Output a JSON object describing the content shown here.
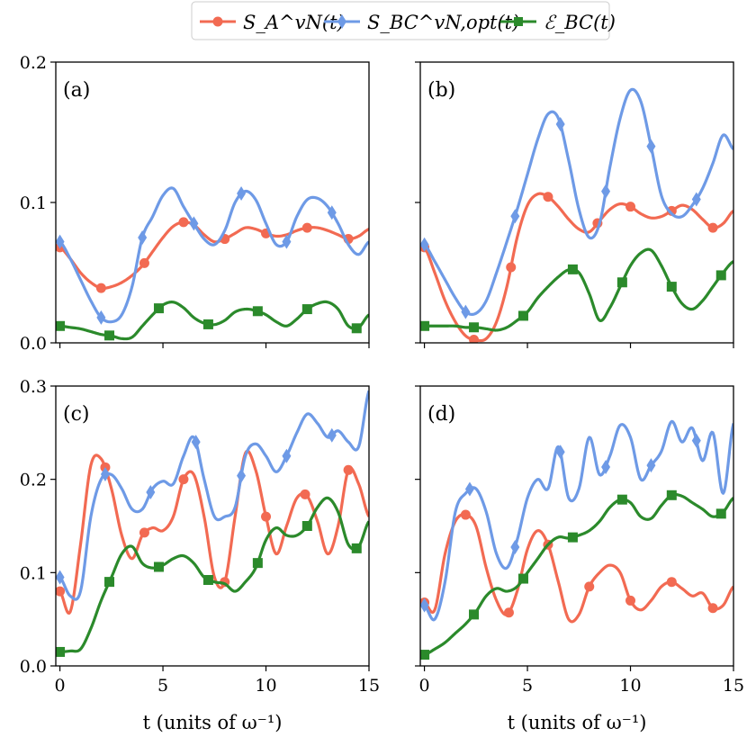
{
  "colors": {
    "S_A": "#f26a52",
    "S_BC": "#6e9ae6",
    "E_BC": "#2b8a2b"
  },
  "legend": {
    "s_a": "S_A^vN(t)",
    "s_bc": "S_BC^vN,opt(t)",
    "e_bc": "ℰ_BC(t)"
  },
  "chart_data": [
    {
      "type": "line",
      "panel": "(a)",
      "xlabel": "",
      "ylabel": "",
      "xlim": [
        -0.2,
        15
      ],
      "ylim": [
        0,
        0.2
      ],
      "xticks": [
        0,
        5,
        10,
        15
      ],
      "yticks": [
        0.0,
        0.1,
        0.2
      ],
      "ytick_labels": [
        "0.0",
        "0.1",
        "0.2"
      ],
      "series": [
        {
          "key": "S_A",
          "name": "S_A^vN(t)",
          "marker": "circle",
          "x": [
            0,
            0.5,
            1,
            1.5,
            2,
            2.5,
            3,
            3.5,
            4,
            4.5,
            5,
            5.5,
            6,
            6.5,
            7,
            7.5,
            8,
            8.5,
            9,
            9.5,
            10,
            10.5,
            11,
            11.5,
            12,
            12.5,
            13,
            13.5,
            14,
            14.5,
            15
          ],
          "y": [
            0.068,
            0.06,
            0.05,
            0.043,
            0.039,
            0.04,
            0.043,
            0.048,
            0.055,
            0.065,
            0.075,
            0.083,
            0.086,
            0.084,
            0.077,
            0.072,
            0.074,
            0.078,
            0.082,
            0.081,
            0.078,
            0.076,
            0.077,
            0.08,
            0.082,
            0.082,
            0.08,
            0.077,
            0.074,
            0.076,
            0.081
          ],
          "markers": [
            0,
            2,
            4.1,
            6,
            8,
            10,
            12,
            14
          ]
        },
        {
          "key": "S_BC",
          "name": "S_BC^vN,opt(t)",
          "marker": "diamond",
          "x": [
            0,
            0.5,
            1,
            1.5,
            2,
            2.5,
            3,
            3.5,
            4,
            4.5,
            5,
            5.5,
            6,
            6.5,
            7,
            7.5,
            8,
            8.5,
            9,
            9.5,
            10,
            10.5,
            11,
            11.5,
            12,
            12.5,
            13,
            13.5,
            14,
            14.5,
            15
          ],
          "y": [
            0.072,
            0.06,
            0.045,
            0.03,
            0.018,
            0.015,
            0.02,
            0.04,
            0.075,
            0.09,
            0.105,
            0.11,
            0.097,
            0.085,
            0.074,
            0.07,
            0.08,
            0.1,
            0.108,
            0.102,
            0.085,
            0.07,
            0.072,
            0.09,
            0.102,
            0.103,
            0.097,
            0.085,
            0.07,
            0.063,
            0.072
          ],
          "markers": [
            0,
            2,
            4,
            6.5,
            8.8,
            11,
            13.2
          ]
        },
        {
          "key": "E_BC",
          "name": "ℰ_BC(t)",
          "marker": "square",
          "x": [
            0,
            0.5,
            1,
            1.5,
            2,
            2.5,
            3,
            3.5,
            4,
            4.5,
            5,
            5.5,
            6,
            6.5,
            7,
            7.5,
            8,
            8.5,
            9,
            9.5,
            10,
            10.5,
            11,
            11.5,
            12,
            12.5,
            13,
            13.5,
            14,
            14.5,
            15
          ],
          "y": [
            0.012,
            0.011,
            0.01,
            0.008,
            0.006,
            0.005,
            0.003,
            0.004,
            0.012,
            0.02,
            0.027,
            0.029,
            0.025,
            0.018,
            0.014,
            0.013,
            0.016,
            0.022,
            0.024,
            0.023,
            0.02,
            0.015,
            0.012,
            0.017,
            0.024,
            0.028,
            0.029,
            0.024,
            0.012,
            0.011,
            0.02
          ],
          "markers": [
            0,
            2.4,
            4.8,
            7.2,
            9.6,
            12,
            14.4
          ]
        }
      ]
    },
    {
      "type": "line",
      "panel": "(b)",
      "xlabel": "",
      "ylabel": "",
      "xlim": [
        -0.2,
        15
      ],
      "ylim": [
        0,
        0.2
      ],
      "xticks": [
        0,
        5,
        10,
        15
      ],
      "yticks": [
        0.0,
        0.1,
        0.2
      ],
      "ytick_labels": [],
      "series": [
        {
          "key": "S_A",
          "name": "S_A^vN(t)",
          "marker": "circle",
          "x": [
            0,
            0.5,
            1,
            1.5,
            2,
            2.5,
            3,
            3.5,
            4,
            4.5,
            5,
            5.5,
            6,
            6.5,
            7,
            7.5,
            8,
            8.5,
            9,
            9.5,
            10,
            10.5,
            11,
            11.5,
            12,
            12.5,
            13,
            13.5,
            14,
            14.5,
            15
          ],
          "y": [
            0.068,
            0.05,
            0.03,
            0.015,
            0.005,
            0.002,
            0.003,
            0.015,
            0.04,
            0.075,
            0.098,
            0.106,
            0.104,
            0.097,
            0.088,
            0.081,
            0.079,
            0.087,
            0.095,
            0.099,
            0.097,
            0.092,
            0.089,
            0.09,
            0.094,
            0.098,
            0.095,
            0.088,
            0.082,
            0.085,
            0.094
          ],
          "markers": [
            0,
            2.4,
            4.2,
            6,
            8.4,
            10,
            12,
            14
          ]
        },
        {
          "key": "S_BC",
          "name": "S_BC^vN,opt(t)",
          "marker": "diamond",
          "x": [
            0,
            0.5,
            1,
            1.5,
            2,
            2.5,
            3,
            3.5,
            4,
            4.5,
            5,
            5.5,
            6,
            6.5,
            7,
            7.5,
            8,
            8.5,
            9,
            9.5,
            10,
            10.5,
            11,
            11.5,
            12,
            12.5,
            13,
            13.5,
            14,
            14.5,
            15
          ],
          "y": [
            0.07,
            0.058,
            0.045,
            0.032,
            0.022,
            0.021,
            0.03,
            0.05,
            0.072,
            0.095,
            0.12,
            0.145,
            0.163,
            0.16,
            0.13,
            0.095,
            0.075,
            0.085,
            0.125,
            0.16,
            0.18,
            0.172,
            0.14,
            0.105,
            0.092,
            0.09,
            0.098,
            0.11,
            0.128,
            0.148,
            0.138
          ],
          "markers": [
            0,
            2,
            4.4,
            6.6,
            8.8,
            11,
            13.2
          ]
        },
        {
          "key": "E_BC",
          "name": "ℰ_BC(t)",
          "marker": "square",
          "x": [
            0,
            0.5,
            1,
            1.5,
            2,
            2.5,
            3,
            3.5,
            4,
            4.5,
            5,
            5.5,
            6,
            6.5,
            7,
            7.5,
            8,
            8.5,
            9,
            9.5,
            10,
            10.5,
            11,
            11.5,
            12,
            12.5,
            13,
            13.5,
            14,
            14.5,
            15
          ],
          "y": [
            0.012,
            0.012,
            0.012,
            0.012,
            0.011,
            0.011,
            0.01,
            0.009,
            0.011,
            0.016,
            0.022,
            0.032,
            0.04,
            0.047,
            0.052,
            0.05,
            0.035,
            0.016,
            0.025,
            0.04,
            0.055,
            0.064,
            0.066,
            0.055,
            0.04,
            0.028,
            0.024,
            0.03,
            0.04,
            0.05,
            0.058
          ],
          "markers": [
            0,
            2.4,
            4.8,
            7.2,
            9.6,
            12,
            14.4
          ]
        }
      ]
    },
    {
      "type": "line",
      "panel": "(c)",
      "xlabel": "t (units of ω⁻¹)",
      "ylabel": "",
      "xlim": [
        -0.2,
        15
      ],
      "ylim": [
        0,
        0.3
      ],
      "xticks": [
        0,
        5,
        10,
        15
      ],
      "yticks": [
        0.0,
        0.1,
        0.2,
        0.3
      ],
      "ytick_labels": [
        "0.0",
        "0.1",
        "0.2",
        "0.3"
      ],
      "series": [
        {
          "key": "S_A",
          "name": "S_A^vN(t)",
          "marker": "circle",
          "x": [
            0,
            0.5,
            1,
            1.5,
            2,
            2.5,
            3,
            3.5,
            4,
            4.5,
            5,
            5.5,
            6,
            6.5,
            7,
            7.5,
            8,
            8.5,
            9,
            9.5,
            10,
            10.5,
            11,
            11.5,
            12,
            12.5,
            13,
            13.5,
            14,
            14.5,
            15
          ],
          "y": [
            0.08,
            0.058,
            0.13,
            0.215,
            0.222,
            0.19,
            0.14,
            0.115,
            0.14,
            0.148,
            0.145,
            0.16,
            0.2,
            0.205,
            0.16,
            0.095,
            0.09,
            0.16,
            0.228,
            0.21,
            0.16,
            0.12,
            0.15,
            0.18,
            0.182,
            0.155,
            0.12,
            0.15,
            0.21,
            0.195,
            0.16
          ],
          "markers": [
            0,
            2.2,
            4.1,
            6,
            8,
            10,
            11.9,
            14
          ]
        },
        {
          "key": "S_BC",
          "name": "S_BC^vN,opt(t)",
          "marker": "diamond",
          "x": [
            0,
            0.5,
            1,
            1.5,
            2,
            2.5,
            3,
            3.5,
            4,
            4.5,
            5,
            5.5,
            6,
            6.5,
            7,
            7.5,
            8,
            8.5,
            9,
            9.5,
            10,
            10.5,
            11,
            11.5,
            12,
            12.5,
            13,
            13.5,
            14,
            14.5,
            15
          ],
          "y": [
            0.095,
            0.075,
            0.08,
            0.16,
            0.2,
            0.205,
            0.19,
            0.168,
            0.168,
            0.19,
            0.198,
            0.195,
            0.225,
            0.245,
            0.2,
            0.16,
            0.16,
            0.17,
            0.225,
            0.238,
            0.225,
            0.208,
            0.225,
            0.25,
            0.27,
            0.26,
            0.245,
            0.252,
            0.24,
            0.235,
            0.295
          ],
          "markers": [
            0,
            2.2,
            4.4,
            6.6,
            8.8,
            11,
            13.2
          ]
        },
        {
          "key": "E_BC",
          "name": "ℰ_BC(t)",
          "marker": "square",
          "x": [
            0,
            0.5,
            1,
            1.5,
            2,
            2.5,
            3,
            3.5,
            4,
            4.5,
            5,
            5.5,
            6,
            6.5,
            7,
            7.5,
            8,
            8.5,
            9,
            9.5,
            10,
            10.5,
            11,
            11.5,
            12,
            12.5,
            13,
            13.5,
            14,
            14.5,
            15
          ],
          "y": [
            0.015,
            0.016,
            0.018,
            0.04,
            0.07,
            0.095,
            0.12,
            0.128,
            0.11,
            0.105,
            0.108,
            0.115,
            0.118,
            0.11,
            0.095,
            0.09,
            0.088,
            0.08,
            0.09,
            0.105,
            0.135,
            0.148,
            0.14,
            0.14,
            0.15,
            0.17,
            0.18,
            0.165,
            0.13,
            0.128,
            0.155
          ],
          "markers": [
            0,
            2.4,
            4.8,
            7.2,
            9.6,
            12,
            14.4
          ]
        }
      ]
    },
    {
      "type": "line",
      "panel": "(d)",
      "xlabel": "t (units of ω⁻¹)",
      "ylabel": "",
      "xlim": [
        -0.2,
        15
      ],
      "ylim": [
        0,
        0.3
      ],
      "xticks": [
        0,
        5,
        10,
        15
      ],
      "yticks": [
        0.0,
        0.1,
        0.2,
        0.3
      ],
      "ytick_labels": [],
      "series": [
        {
          "key": "S_A",
          "name": "S_A^vN(t)",
          "marker": "circle",
          "x": [
            0,
            0.5,
            1,
            1.5,
            2,
            2.5,
            3,
            3.5,
            4,
            4.5,
            5,
            5.5,
            6,
            6.5,
            7,
            7.5,
            8,
            8.5,
            9,
            9.5,
            10,
            10.5,
            11,
            11.5,
            12,
            12.5,
            13,
            13.5,
            14,
            14.5,
            15
          ],
          "y": [
            0.068,
            0.06,
            0.12,
            0.155,
            0.162,
            0.15,
            0.105,
            0.07,
            0.055,
            0.08,
            0.125,
            0.145,
            0.13,
            0.09,
            0.05,
            0.055,
            0.085,
            0.1,
            0.108,
            0.1,
            0.07,
            0.06,
            0.07,
            0.085,
            0.09,
            0.083,
            0.075,
            0.078,
            0.062,
            0.065,
            0.085
          ],
          "markers": [
            0,
            2,
            4.1,
            6,
            8,
            10,
            12,
            14
          ]
        },
        {
          "key": "S_BC",
          "name": "S_BC^vN,opt(t)",
          "marker": "diamond",
          "x": [
            0,
            0.5,
            1,
            1.5,
            2,
            2.5,
            3,
            3.5,
            4,
            4.5,
            5,
            5.5,
            6,
            6.5,
            7,
            7.5,
            8,
            8.5,
            9,
            9.5,
            10,
            10.5,
            11,
            11.5,
            12,
            12.5,
            13,
            13.5,
            14,
            14.5,
            15
          ],
          "y": [
            0.065,
            0.05,
            0.09,
            0.165,
            0.185,
            0.19,
            0.165,
            0.12,
            0.105,
            0.135,
            0.18,
            0.2,
            0.19,
            0.235,
            0.18,
            0.19,
            0.245,
            0.205,
            0.225,
            0.258,
            0.245,
            0.2,
            0.215,
            0.23,
            0.262,
            0.24,
            0.255,
            0.22,
            0.25,
            0.185,
            0.26
          ],
          "markers": [
            0,
            2.2,
            4.4,
            6.6,
            8.8,
            11,
            13.2
          ]
        },
        {
          "key": "E_BC",
          "name": "ℰ_BC(t)",
          "marker": "square",
          "x": [
            0,
            0.5,
            1,
            1.5,
            2,
            2.5,
            3,
            3.5,
            4,
            4.5,
            5,
            5.5,
            6,
            6.5,
            7,
            7.5,
            8,
            8.5,
            9,
            9.5,
            10,
            10.5,
            11,
            11.5,
            12,
            12.5,
            13,
            13.5,
            14,
            14.5,
            15
          ],
          "y": [
            0.012,
            0.018,
            0.025,
            0.035,
            0.045,
            0.058,
            0.075,
            0.083,
            0.08,
            0.085,
            0.1,
            0.115,
            0.13,
            0.138,
            0.137,
            0.14,
            0.145,
            0.155,
            0.17,
            0.178,
            0.175,
            0.16,
            0.158,
            0.172,
            0.183,
            0.182,
            0.175,
            0.168,
            0.16,
            0.165,
            0.18
          ],
          "markers": [
            0,
            2.4,
            4.8,
            7.2,
            9.6,
            12,
            14.4
          ]
        }
      ]
    }
  ]
}
